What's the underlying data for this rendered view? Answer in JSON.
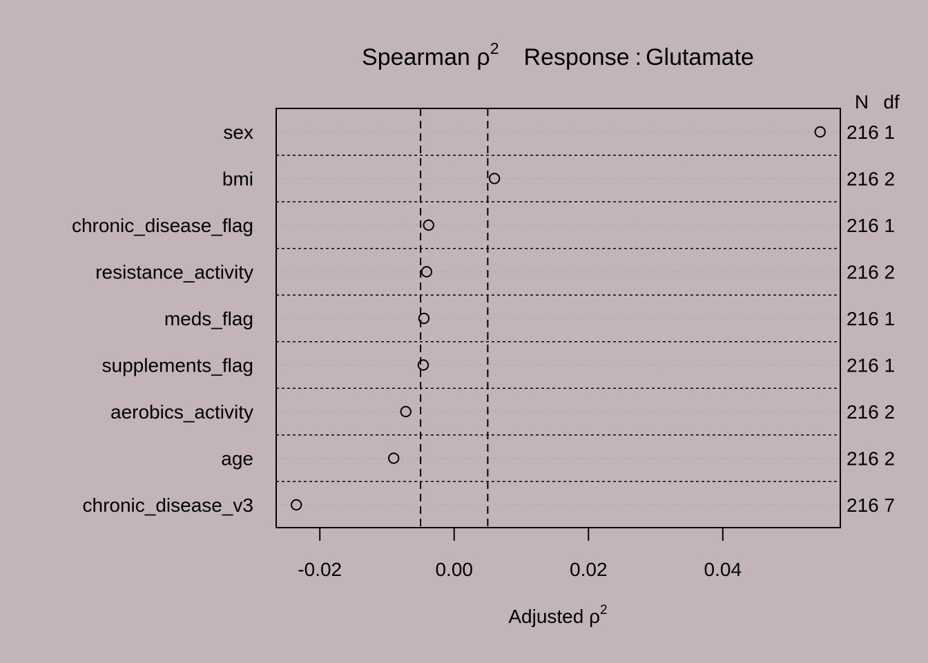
{
  "background_color": "#c2b4b9",
  "chart_data": {
    "type": "scatter",
    "title": {
      "prefix": "Spearman ",
      "symbol": "ρ",
      "superscript": "2",
      "response_label": "Response",
      "separator": ":",
      "response": "Glutamate"
    },
    "xlabel": {
      "text": "Adjusted ",
      "symbol": "ρ",
      "superscript": "2"
    },
    "column_headers": {
      "n": "N",
      "df": "df"
    },
    "xlim": [
      -0.0265,
      0.0575
    ],
    "x_ticks": [
      -0.02,
      0.0,
      0.02,
      0.04
    ],
    "x_tick_labels": [
      "-0.02",
      "0.00",
      "0.02",
      "0.04"
    ],
    "reference_lines": [
      -0.005,
      0.005
    ],
    "predictors": [
      {
        "label": "sex",
        "value": 0.0545,
        "n": "216",
        "df": "1"
      },
      {
        "label": "bmi",
        "value": 0.006,
        "n": "216",
        "df": "2"
      },
      {
        "label": "chronic_disease_flag",
        "value": -0.0038,
        "n": "216",
        "df": "1"
      },
      {
        "label": "resistance_activity",
        "value": -0.0041,
        "n": "216",
        "df": "2"
      },
      {
        "label": "meds_flag",
        "value": -0.0045,
        "n": "216",
        "df": "1"
      },
      {
        "label": "supplements_flag",
        "value": -0.0046,
        "n": "216",
        "df": "1"
      },
      {
        "label": "aerobics_activity",
        "value": -0.0072,
        "n": "216",
        "df": "2"
      },
      {
        "label": "age",
        "value": -0.009,
        "n": "216",
        "df": "2"
      },
      {
        "label": "chronic_disease_v3",
        "value": -0.0235,
        "n": "216",
        "df": "7"
      }
    ]
  }
}
